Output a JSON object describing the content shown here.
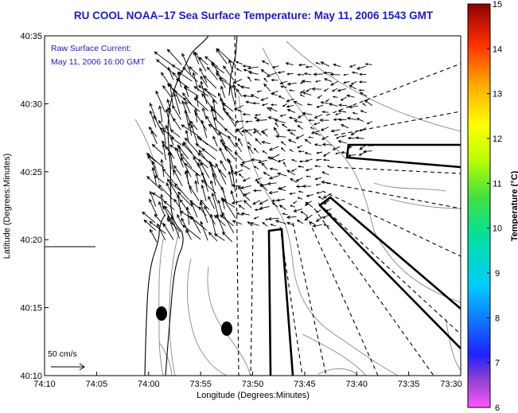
{
  "title": "RU COOL  NOAA–17  Sea Surface Temperature:  May 11, 2006 1543 GMT",
  "annotation": {
    "line1": "Raw Surface Current:",
    "line2": "May 11, 2006 16:00 GMT"
  },
  "scale_label": "50 cm/s",
  "x_axis": {
    "label": "Longitude (Degrees:Minutes)",
    "ticks": [
      "74:10",
      "74:05",
      "74:00",
      "73:55",
      "73:50",
      "73:45",
      "73:40",
      "73:35",
      "73:30"
    ]
  },
  "y_axis": {
    "label": "Latitude (Degrees:Minutes)",
    "ticks": [
      "40:35",
      "40:30",
      "40:25",
      "40:20",
      "40:15",
      "40:10"
    ]
  },
  "colorbar": {
    "label": "Temperature (°C)",
    "min": 6,
    "max": 15,
    "ticks": [
      "15",
      "14",
      "13",
      "12",
      "11",
      "10",
      "9",
      "8",
      "7",
      "6"
    ]
  },
  "colors": {
    "title": "#1a1acc",
    "coastline": "#000000",
    "bathymetry": "#888888",
    "vectors": "#000000"
  }
}
